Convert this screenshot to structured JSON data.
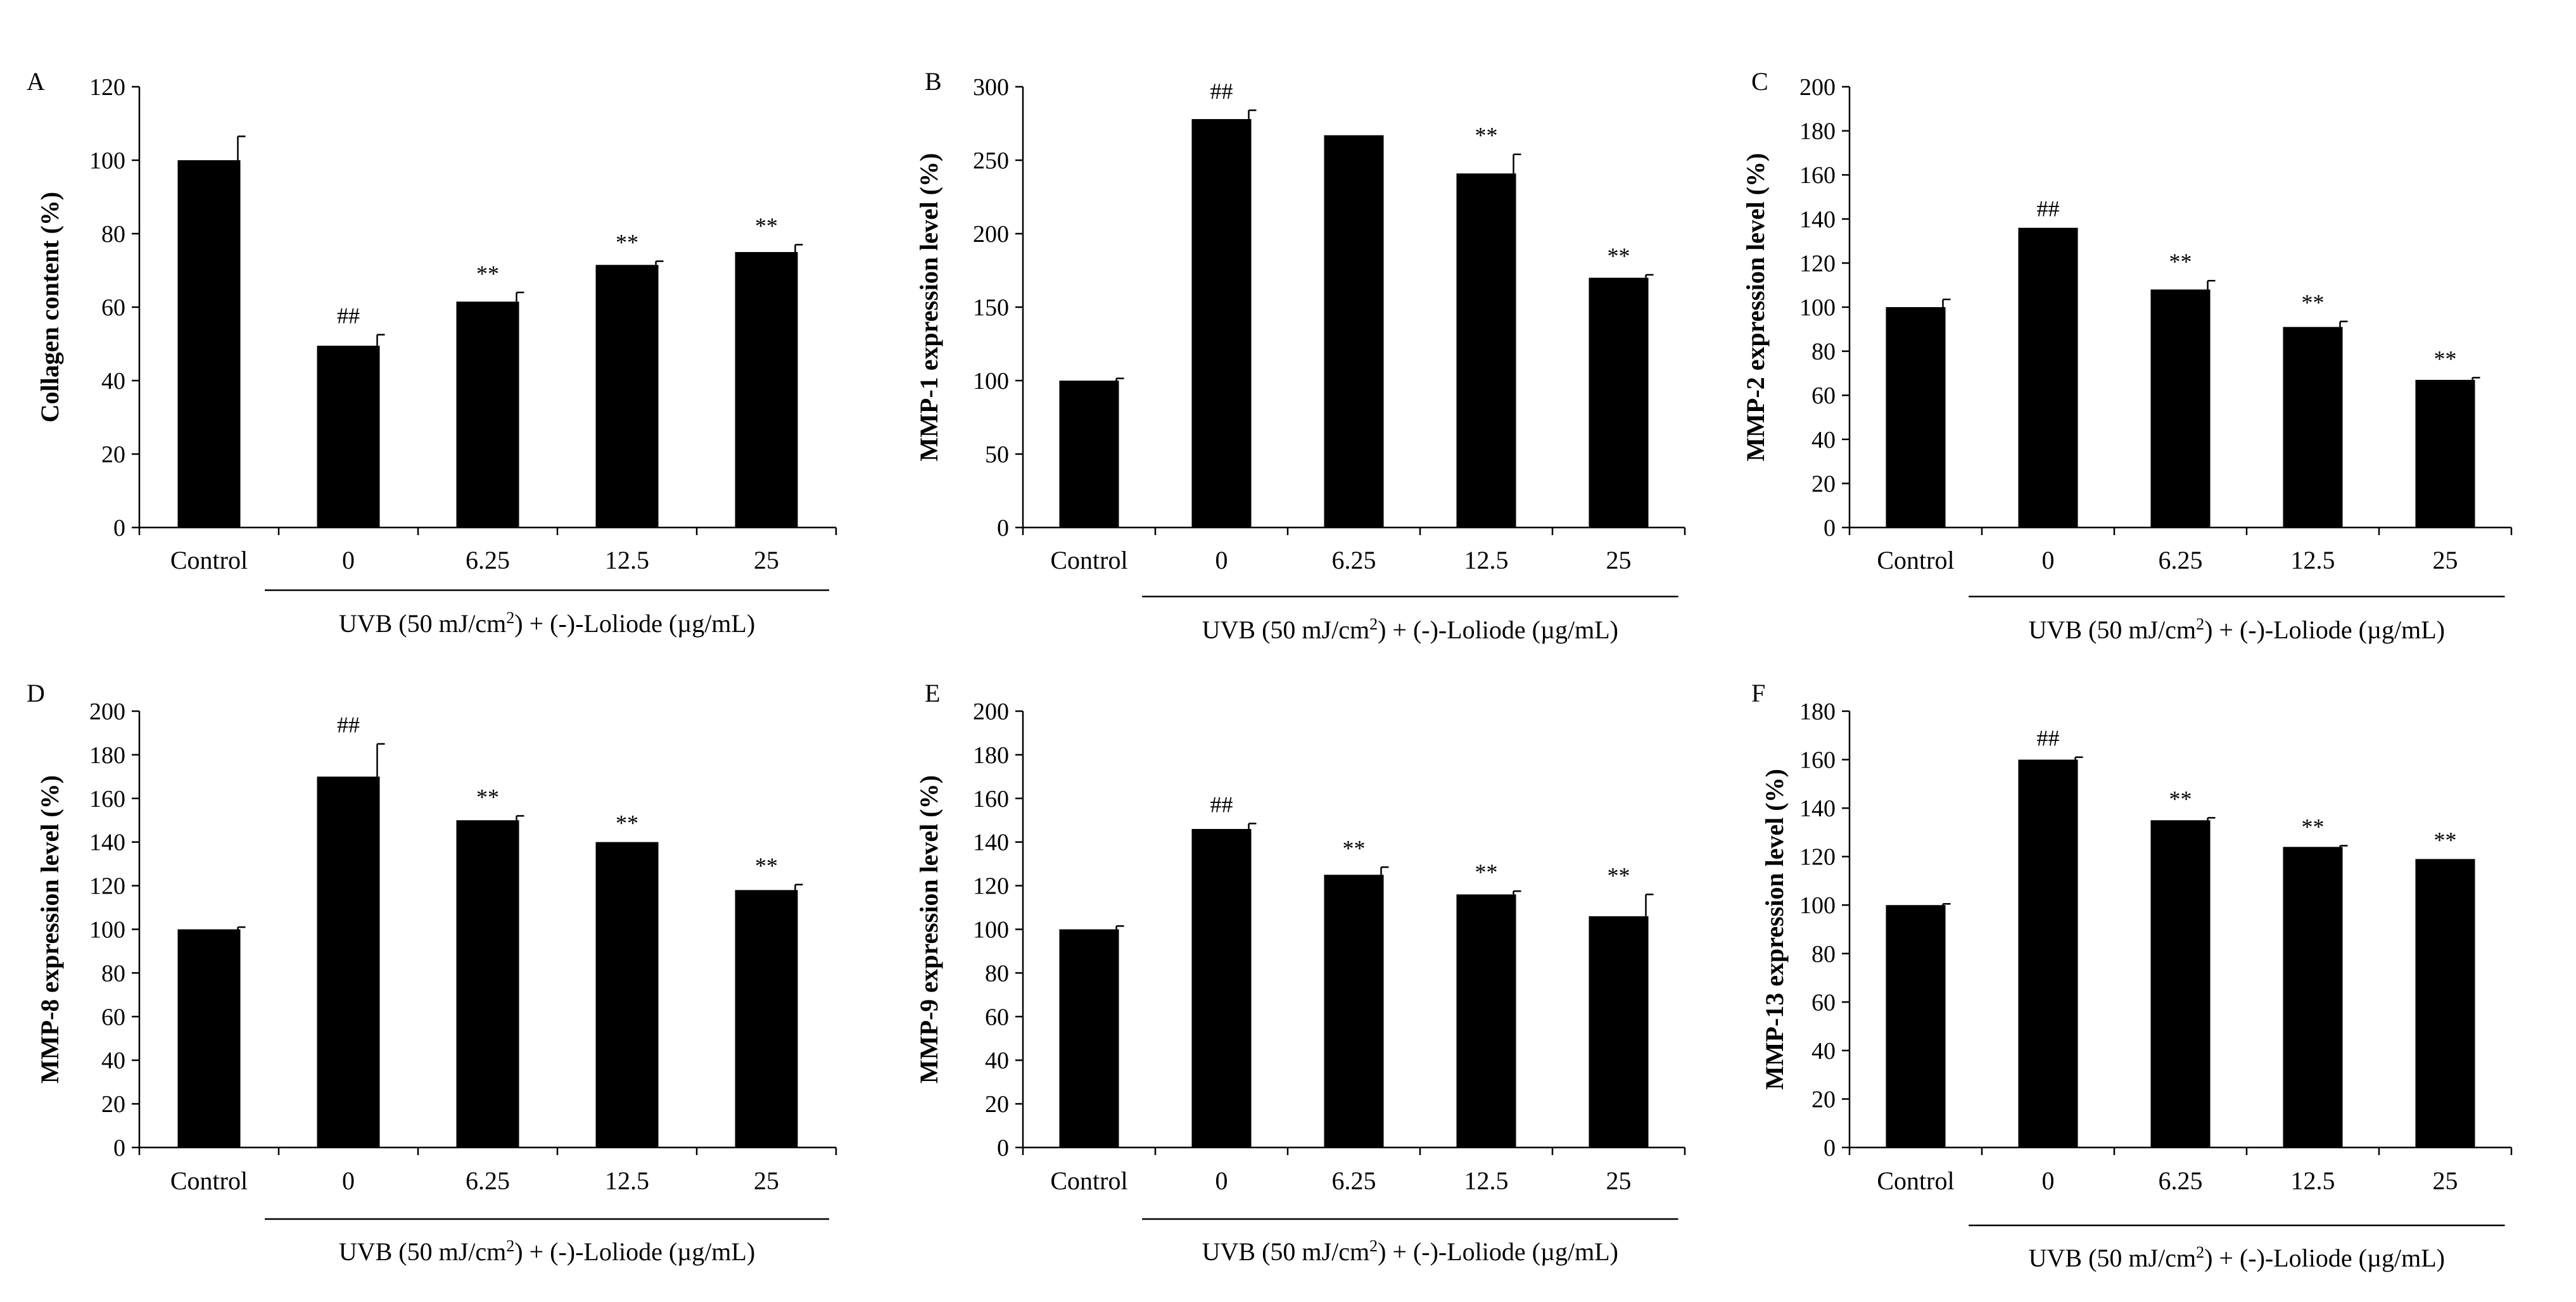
{
  "colors": {
    "bar": "#000000",
    "axis": "#000000",
    "background": "#ffffff"
  },
  "chart_data": [
    {
      "type": "bar",
      "panel": "A",
      "ylabel": "Collagen content (%)",
      "xlabel": "",
      "ylim": [
        0,
        120
      ],
      "yticks": [
        0,
        20,
        40,
        60,
        80,
        100,
        120
      ],
      "categories": [
        "Control",
        "0",
        "6.25",
        "12.5",
        "25"
      ],
      "values": [
        100,
        49.5,
        61.5,
        71.5,
        75
      ],
      "errors": [
        6.5,
        3,
        2.5,
        1,
        2
      ],
      "annotations": [
        "",
        "##",
        "**",
        "**",
        "**"
      ],
      "group_label": {
        "pre": "UVB (50 mJ/cm",
        "sup": "2",
        "post": ") + (-)-Loliode (µg/mL)"
      }
    },
    {
      "type": "bar",
      "panel": "B",
      "ylabel": "MMP-1 expression level (%)",
      "xlabel": "",
      "ylim": [
        0,
        300
      ],
      "yticks": [
        0,
        50,
        100,
        150,
        200,
        250,
        300
      ],
      "categories": [
        "Control",
        "0",
        "6.25",
        "12.5",
        "25"
      ],
      "values": [
        100,
        278,
        267,
        241,
        170
      ],
      "errors": [
        1.5,
        6,
        0,
        13,
        2
      ],
      "annotations": [
        "",
        "##",
        "",
        "**",
        "**"
      ],
      "group_label": {
        "pre": "UVB (50 mJ/cm",
        "sup": "2",
        "post": ") + (-)-Loliode (µg/mL)"
      }
    },
    {
      "type": "bar",
      "panel": "C",
      "ylabel": "MMP-2 expression level (%)",
      "xlabel": "",
      "ylim": [
        0,
        200
      ],
      "yticks": [
        0,
        20,
        40,
        60,
        80,
        100,
        120,
        140,
        160,
        180,
        200
      ],
      "categories": [
        "Control",
        "0",
        "6.25",
        "12.5",
        "25"
      ],
      "values": [
        100,
        136,
        108,
        91,
        67
      ],
      "errors": [
        3.5,
        0,
        4,
        2.5,
        1
      ],
      "annotations": [
        "",
        "##",
        "**",
        "**",
        "**"
      ],
      "group_label": {
        "pre": "UVB (50 mJ/cm",
        "sup": "2",
        "post": ") + (-)-Loliode (µg/mL)"
      }
    },
    {
      "type": "bar",
      "panel": "D",
      "ylabel": "MMP-8 expression level (%)",
      "xlabel": "",
      "ylim": [
        0,
        200
      ],
      "yticks": [
        0,
        20,
        40,
        60,
        80,
        100,
        120,
        140,
        160,
        180,
        200
      ],
      "categories": [
        "Control",
        "0",
        "6.25",
        "12.5",
        "25"
      ],
      "values": [
        100,
        170,
        150,
        140,
        118
      ],
      "errors": [
        1,
        15,
        2,
        0,
        2.5
      ],
      "annotations": [
        "",
        "##",
        "**",
        "**",
        "**"
      ],
      "group_label": {
        "pre": "UVB (50 mJ/cm",
        "sup": "2",
        "post": ") + (-)-Loliode (µg/mL)"
      }
    },
    {
      "type": "bar",
      "panel": "E",
      "ylabel": "MMP-9 expression level (%)",
      "xlabel": "",
      "ylim": [
        0,
        200
      ],
      "yticks": [
        0,
        20,
        40,
        60,
        80,
        100,
        120,
        140,
        160,
        180,
        200
      ],
      "categories": [
        "Control",
        "0",
        "6.25",
        "12.5",
        "25"
      ],
      "values": [
        100,
        146,
        125,
        116,
        106
      ],
      "errors": [
        1.5,
        2.5,
        3.5,
        1.5,
        10
      ],
      "annotations": [
        "",
        "##",
        "**",
        "**",
        "**"
      ],
      "group_label": {
        "pre": "UVB (50 mJ/cm",
        "sup": "2",
        "post": ") + (-)-Loliode (µg/mL)"
      }
    },
    {
      "type": "bar",
      "panel": "F",
      "ylabel": "MMP-13 expression level (%)",
      "xlabel": "",
      "ylim": [
        0,
        180
      ],
      "yticks": [
        0,
        20,
        40,
        60,
        80,
        100,
        120,
        140,
        160,
        180
      ],
      "categories": [
        "Control",
        "0",
        "6.25",
        "12.5",
        "25"
      ],
      "values": [
        100,
        160,
        135,
        124,
        119
      ],
      "errors": [
        0.5,
        1,
        1,
        0.5,
        0
      ],
      "annotations": [
        "",
        "##",
        "**",
        "**",
        "**"
      ],
      "group_label": {
        "pre": "UVB (50 mJ/cm",
        "sup": "2",
        "post": ") + (-)-Loliode (µg/mL)"
      }
    }
  ]
}
